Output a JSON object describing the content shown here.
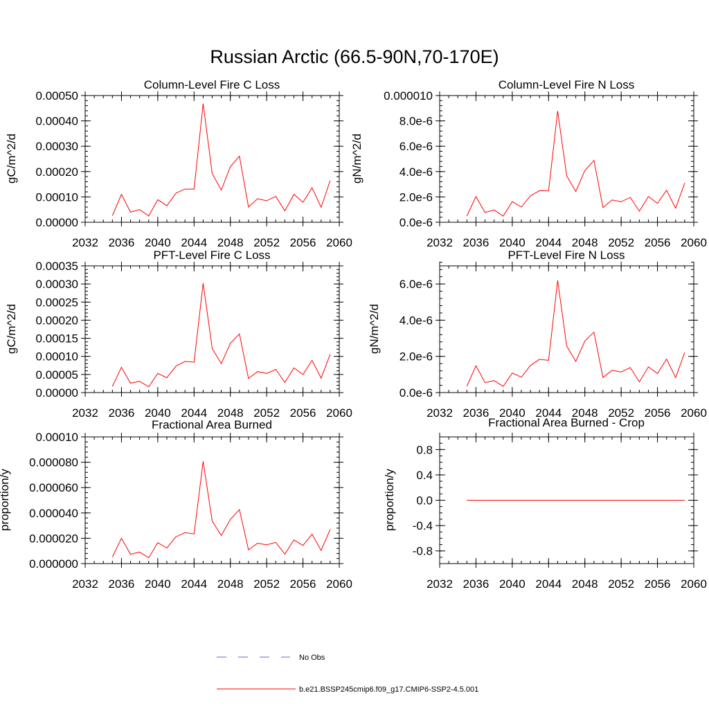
{
  "figure": {
    "title": "Russian Arctic (66.5-90N,70-170E)"
  },
  "legend": {
    "obs_label": "No Obs",
    "obs_color": "#6666cc",
    "model_label": "b.e21.BSSP245cmip6.f09_g17.CMIP6-SSP2-4.5.001",
    "model_color": "#ff0000"
  },
  "chart_data": [
    {
      "type": "line",
      "title": "Column-Level Fire C Loss",
      "ylabel": "gC/m^2/d",
      "xlim": [
        2032,
        2060
      ],
      "ylim": [
        0,
        0.0005
      ],
      "x_ticks": [
        "2032",
        "2036",
        "2040",
        "2044",
        "2048",
        "2052",
        "2056",
        "2060"
      ],
      "y_ticks": [
        {
          "v": 0,
          "label": "0.00000"
        },
        {
          "v": 0.0001,
          "label": "0.00010"
        },
        {
          "v": 0.0002,
          "label": "0.00020"
        },
        {
          "v": 0.0003,
          "label": "0.00030"
        },
        {
          "v": 0.0004,
          "label": "0.00040"
        },
        {
          "v": 0.0005,
          "label": "0.00050"
        }
      ],
      "y_minor": 2e-05,
      "series": [
        {
          "x": [
            2035,
            2036,
            2037,
            2038,
            2039,
            2040,
            2041,
            2042,
            2043,
            2044,
            2045,
            2046,
            2047,
            2048,
            2049,
            2050,
            2051,
            2052,
            2053,
            2054,
            2055,
            2056,
            2057,
            2058,
            2059
          ],
          "values": [
            2.6e-05,
            0.00011,
            4e-05,
            5e-05,
            2.5e-05,
            8.9e-05,
            6.5e-05,
            0.000115,
            0.000131,
            0.000131,
            0.000468,
            0.000192,
            0.000127,
            0.000219,
            0.000261,
            6e-05,
            9.3e-05,
            8.5e-05,
            0.000102,
            4.5e-05,
            0.00011,
            7.9e-05,
            0.000136,
            5.9e-05,
            0.000165
          ]
        }
      ]
    },
    {
      "type": "line",
      "title": "Column-Level Fire N Loss",
      "ylabel": "gN/m^2/d",
      "xlim": [
        2032,
        2060
      ],
      "ylim": [
        0,
        1e-05
      ],
      "x_ticks": [
        "2032",
        "2036",
        "2040",
        "2044",
        "2048",
        "2052",
        "2056",
        "2060"
      ],
      "y_ticks": [
        {
          "v": 0,
          "label": "0.0e-6"
        },
        {
          "v": 2e-06,
          "label": "2.0e-6"
        },
        {
          "v": 4e-06,
          "label": "4.0e-6"
        },
        {
          "v": 6e-06,
          "label": "6.0e-6"
        },
        {
          "v": 8e-06,
          "label": "8.0e-6"
        },
        {
          "v": 1e-05,
          "label": "0.000010"
        }
      ],
      "y_minor": 4e-07,
      "series": [
        {
          "x": [
            2035,
            2036,
            2037,
            2038,
            2039,
            2040,
            2041,
            2042,
            2043,
            2044,
            2045,
            2046,
            2047,
            2048,
            2049,
            2050,
            2051,
            2052,
            2053,
            2054,
            2055,
            2056,
            2057,
            2058,
            2059
          ],
          "values": [
            4.9e-07,
            2.03e-06,
            7.7e-07,
            9.7e-07,
            4.9e-07,
            1.63e-06,
            1.21e-06,
            2.09e-06,
            2.49e-06,
            2.48e-06,
            8.78e-06,
            3.65e-06,
            2.43e-06,
            4.08e-06,
            4.88e-06,
            1.16e-06,
            1.76e-06,
            1.62e-06,
            1.96e-06,
            8.7e-07,
            2.03e-06,
            1.49e-06,
            2.53e-06,
            1.11e-06,
            3.1e-06
          ]
        }
      ]
    },
    {
      "type": "line",
      "title": "PFT-Level Fire C Loss",
      "ylabel": "gC/m^2/d",
      "xlim": [
        2032,
        2060
      ],
      "ylim": [
        0,
        0.00035
      ],
      "x_ticks": [
        "2032",
        "2036",
        "2040",
        "2044",
        "2048",
        "2052",
        "2056",
        "2060"
      ],
      "y_ticks": [
        {
          "v": 0,
          "label": "0.00000"
        },
        {
          "v": 5e-05,
          "label": "0.00005"
        },
        {
          "v": 0.0001,
          "label": "0.00010"
        },
        {
          "v": 0.00015,
          "label": "0.00015"
        },
        {
          "v": 0.0002,
          "label": "0.00020"
        },
        {
          "v": 0.00025,
          "label": "0.00025"
        },
        {
          "v": 0.0003,
          "label": "0.00030"
        },
        {
          "v": 0.00035,
          "label": "0.00035"
        }
      ],
      "y_minor": 1e-05,
      "series": [
        {
          "x": [
            2035,
            2036,
            2037,
            2038,
            2039,
            2040,
            2041,
            2042,
            2043,
            2044,
            2045,
            2046,
            2047,
            2048,
            2049,
            2050,
            2051,
            2052,
            2053,
            2054,
            2055,
            2056,
            2057,
            2058,
            2059
          ],
          "values": [
            1.7e-05,
            7e-05,
            2.6e-05,
            3.1e-05,
            1.6e-05,
            5.3e-05,
            4.1e-05,
            7.3e-05,
            8.6e-05,
            8.4e-05,
            0.000302,
            0.000122,
            8e-05,
            0.000136,
            0.000162,
            3.9e-05,
            5.8e-05,
            5.3e-05,
            6.4e-05,
            2.8e-05,
            6.8e-05,
            5e-05,
            8.9e-05,
            4e-05,
            0.000106
          ]
        }
      ]
    },
    {
      "type": "line",
      "title": "PFT-Level Fire N Loss",
      "ylabel": "gN/m^2/d",
      "xlim": [
        2032,
        2060
      ],
      "ylim": [
        0,
        7e-06
      ],
      "x_ticks": [
        "2032",
        "2036",
        "2040",
        "2044",
        "2048",
        "2052",
        "2056",
        "2060"
      ],
      "y_ticks": [
        {
          "v": 0,
          "label": "0.0e-6"
        },
        {
          "v": 2e-06,
          "label": "2.0e-6"
        },
        {
          "v": 4e-06,
          "label": "4.0e-6"
        },
        {
          "v": 6e-06,
          "label": "6.0e-6"
        }
      ],
      "y_minor": 4e-07,
      "series": [
        {
          "x": [
            2035,
            2036,
            2037,
            2038,
            2039,
            2040,
            2041,
            2042,
            2043,
            2044,
            2045,
            2046,
            2047,
            2048,
            2049,
            2050,
            2051,
            2052,
            2053,
            2054,
            2055,
            2056,
            2057,
            2058,
            2059
          ],
          "values": [
            3.5e-07,
            1.48e-06,
            5.5e-07,
            6.6e-07,
            3.5e-07,
            1.08e-06,
            8.5e-07,
            1.5e-06,
            1.84e-06,
            1.78e-06,
            6.2e-06,
            2.57e-06,
            1.72e-06,
            2.85e-06,
            3.34e-06,
            8.3e-07,
            1.23e-06,
            1.14e-06,
            1.38e-06,
            5.9e-07,
            1.42e-06,
            1.05e-06,
            1.85e-06,
            8.3e-07,
            2.21e-06
          ]
        }
      ]
    },
    {
      "type": "line",
      "title": "Fractional Area Burned",
      "ylabel": "proportion/y",
      "xlim": [
        2032,
        2060
      ],
      "ylim": [
        0,
        0.0001
      ],
      "x_ticks": [
        "2032",
        "2036",
        "2040",
        "2044",
        "2048",
        "2052",
        "2056",
        "2060"
      ],
      "y_ticks": [
        {
          "v": 0,
          "label": "0.000000"
        },
        {
          "v": 2e-05,
          "label": "0.000020"
        },
        {
          "v": 4e-05,
          "label": "0.000040"
        },
        {
          "v": 6e-05,
          "label": "0.000060"
        },
        {
          "v": 8e-05,
          "label": "0.000080"
        },
        {
          "v": 0.0001,
          "label": "0.00010"
        }
      ],
      "y_minor": 4e-06,
      "series": [
        {
          "x": [
            2035,
            2036,
            2037,
            2038,
            2039,
            2040,
            2041,
            2042,
            2043,
            2044,
            2045,
            2046,
            2047,
            2048,
            2049,
            2050,
            2051,
            2052,
            2053,
            2054,
            2055,
            2056,
            2057,
            2058,
            2059
          ],
          "values": [
            5.2e-06,
            2e-05,
            7.4e-06,
            9.1e-06,
            4.6e-06,
            1.65e-05,
            1.23e-05,
            2.12e-05,
            2.44e-05,
            2.34e-05,
            8.07e-05,
            3.35e-05,
            2.22e-05,
            3.48e-05,
            4.26e-05,
            1.08e-05,
            1.61e-05,
            1.48e-05,
            1.67e-05,
            7.5e-06,
            1.87e-05,
            1.43e-05,
            2.33e-05,
            1.04e-05,
            2.7e-05
          ]
        }
      ]
    },
    {
      "type": "line",
      "title": "Fractional Area Burned - Crop",
      "ylabel": "proportion/y",
      "xlim": [
        2032,
        2060
      ],
      "ylim": [
        -1.0,
        1.0
      ],
      "x_ticks": [
        "2032",
        "2036",
        "2040",
        "2044",
        "2048",
        "2052",
        "2056",
        "2060"
      ],
      "y_ticks": [
        {
          "v": -0.8,
          "label": "-0.8"
        },
        {
          "v": -0.4,
          "label": "-0.4"
        },
        {
          "v": 0,
          "label": "0.0"
        },
        {
          "v": 0.4,
          "label": "0.4"
        },
        {
          "v": 0.8,
          "label": "0.8"
        }
      ],
      "y_minor": 0.1,
      "series": [
        {
          "x": [
            2035,
            2036,
            2037,
            2038,
            2039,
            2040,
            2041,
            2042,
            2043,
            2044,
            2045,
            2046,
            2047,
            2048,
            2049,
            2050,
            2051,
            2052,
            2053,
            2054,
            2055,
            2056,
            2057,
            2058,
            2059
          ],
          "values": [
            0,
            0,
            0,
            0,
            0,
            0,
            0,
            0,
            0,
            0,
            0,
            0,
            0,
            0,
            0,
            0,
            0,
            0,
            0,
            0,
            0,
            0,
            0,
            0,
            0
          ]
        }
      ]
    }
  ]
}
